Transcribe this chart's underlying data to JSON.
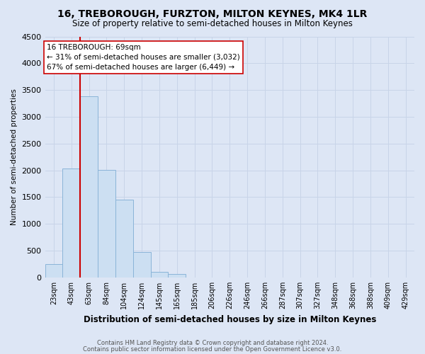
{
  "title": "16, TREBOROUGH, FURZTON, MILTON KEYNES, MK4 1LR",
  "subtitle": "Size of property relative to semi-detached houses in Milton Keynes",
  "xlabel": "Distribution of semi-detached houses by size in Milton Keynes",
  "ylabel": "Number of semi-detached properties",
  "footer_line1": "Contains HM Land Registry data © Crown copyright and database right 2024.",
  "footer_line2": "Contains public sector information licensed under the Open Government Licence v3.0.",
  "categories": [
    "23sqm",
    "43sqm",
    "63sqm",
    "84sqm",
    "104sqm",
    "124sqm",
    "145sqm",
    "165sqm",
    "185sqm",
    "206sqm",
    "226sqm",
    "246sqm",
    "266sqm",
    "287sqm",
    "307sqm",
    "327sqm",
    "348sqm",
    "368sqm",
    "388sqm",
    "409sqm",
    "429sqm"
  ],
  "bar_values": [
    250,
    2030,
    3380,
    2010,
    1450,
    480,
    100,
    60,
    0,
    0,
    0,
    0,
    0,
    0,
    0,
    0,
    0,
    0,
    0,
    0,
    0
  ],
  "bar_color": "#ccdff2",
  "bar_edge_color": "#8ab4d8",
  "grid_color": "#c8d4e8",
  "background_color": "#dde6f5",
  "subject_line_color": "#cc0000",
  "subject_line_bin": 2,
  "annotation_text_line1": "16 TREBOROUGH: 69sqm",
  "annotation_text_line2": "← 31% of semi-detached houses are smaller (3,032)",
  "annotation_text_line3": "67% of semi-detached houses are larger (6,449) →",
  "annotation_box_color": "#ffffff",
  "annotation_box_edge": "#cc0000",
  "ylim": [
    0,
    4500
  ],
  "yticks": [
    0,
    500,
    1000,
    1500,
    2000,
    2500,
    3000,
    3500,
    4000,
    4500
  ]
}
